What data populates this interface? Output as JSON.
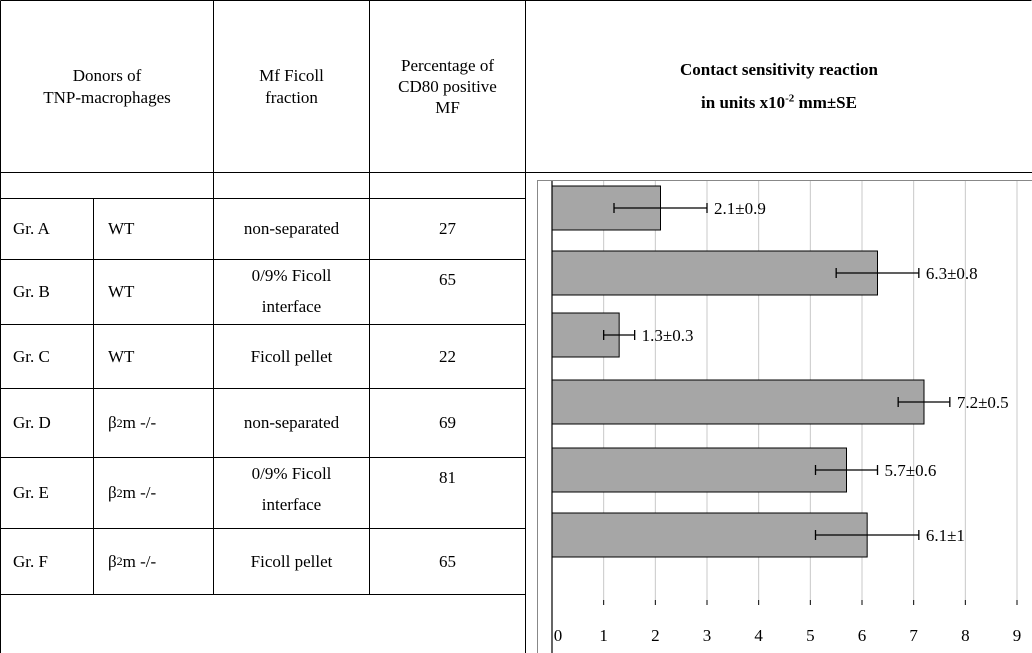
{
  "table": {
    "headers": {
      "donors": [
        "Donors of",
        "TNP-macrophages"
      ],
      "fraction": [
        "Mf Ficoll",
        "fraction"
      ],
      "percentage": [
        "Percentage of",
        "CD80 positive",
        "MF"
      ]
    },
    "rows": [
      {
        "group": "Gr. A",
        "strain_base": "WT",
        "strain_sub": "",
        "strain_rest": "",
        "fraction_lines": [
          "non-separated"
        ],
        "percentage": "27"
      },
      {
        "group": "Gr. B",
        "strain_base": "WT",
        "strain_sub": "",
        "strain_rest": "",
        "fraction_lines": [
          "0/9% Ficoll",
          "interface"
        ],
        "percentage": "65"
      },
      {
        "group": "Gr. C",
        "strain_base": "WT",
        "strain_sub": "",
        "strain_rest": "",
        "fraction_lines": [
          "Ficoll pellet"
        ],
        "percentage": "22"
      },
      {
        "group": "Gr. D",
        "strain_base": "β",
        "strain_sub": "2",
        "strain_rest": "m -/-",
        "fraction_lines": [
          "non-separated"
        ],
        "percentage": "69"
      },
      {
        "group": "Gr. E",
        "strain_base": "β",
        "strain_sub": "2",
        "strain_rest": "m -/-",
        "fraction_lines": [
          "0/9% Ficoll",
          "interface"
        ],
        "percentage": "81"
      },
      {
        "group": "Gr. F",
        "strain_base": "β",
        "strain_sub": "2",
        "strain_rest": "m -/-",
        "fraction_lines": [
          "Ficoll pellet"
        ],
        "percentage": "65"
      }
    ]
  },
  "chart_data": {
    "type": "bar",
    "orientation": "horizontal",
    "title_line1": "Contact sensitivity reaction",
    "title_line2_pre": "in units x10",
    "title_line2_sup": "-2",
    "title_line2_post": " mm±SE",
    "categories": [
      "Gr. A",
      "Gr. B",
      "Gr. C",
      "Gr. D",
      "Gr. E",
      "Gr. F"
    ],
    "values": [
      2.1,
      6.3,
      1.3,
      7.2,
      5.7,
      6.1
    ],
    "errors": [
      0.9,
      0.8,
      0.3,
      0.5,
      0.6,
      1
    ],
    "labels": [
      "2.1±0.9",
      "6.3±0.8",
      "1.3±0.3",
      "7.2±0.5",
      "5.7±0.6",
      "6.1±1"
    ],
    "xlim": [
      0,
      9
    ],
    "xticks": [
      "0",
      "1",
      "2",
      "3",
      "4",
      "5",
      "6",
      "7",
      "8",
      "9"
    ],
    "grid": true,
    "bar_color": "#a6a6a6",
    "grid_color": "#c8c8c8"
  }
}
